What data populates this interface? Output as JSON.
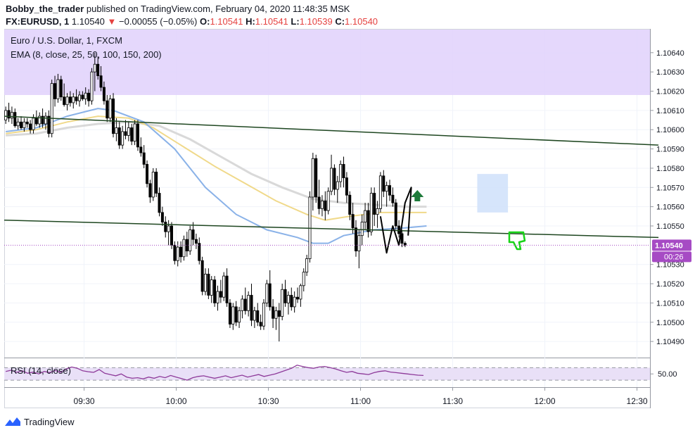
{
  "header": {
    "author": "Bobby_the_trader",
    "published_text": "published on TradingView.com, February 04, 2020 11:48:35 MSK"
  },
  "ticker": {
    "symbol": "FX:EURUSD, 1",
    "last": "1.10540",
    "arrow": "▼",
    "change": "−0.00055 (−0.05%)",
    "o_label": "O:",
    "o_value": "1.10541",
    "h_label": "H:",
    "h_value": "1.10541",
    "l_label": "L:",
    "l_value": "1.10539",
    "c_label": "C:",
    "c_value": "1.10540"
  },
  "legend": {
    "title": "Euro / U.S. Dollar, 1, FXCM",
    "ema": "EMA (8, close, 25, 50, 100, 150, 200)",
    "rsi": "RSI (14, close)"
  },
  "footer": {
    "brand": "TradingView"
  },
  "colors": {
    "up": "#ffffff",
    "down": "#000000",
    "resistance_zone": "#e1d1fb",
    "trendline": "#1e4620",
    "ema_fast": "#8ab2e8",
    "ema_mid": "#f0d98a",
    "ema_slow": "#d9d9d9",
    "rsi_line": "#8e3a9a",
    "rsi_band": "#e9e0f7",
    "price_tag": "#a64bc4",
    "target_box": "#cfe0fa",
    "arrow_up": "#1e7a3a",
    "thumb_down": "#18d318"
  },
  "chart_data": {
    "type": "candlestick",
    "x_ticks": [
      "09:30",
      "10:00",
      "10:30",
      "11:00",
      "11:30",
      "12:00",
      "12:30"
    ],
    "y_ticks": [
      "1.10640",
      "1.10630",
      "1.10620",
      "1.10610",
      "1.10600",
      "1.10590",
      "1.10580",
      "1.10570",
      "1.10560",
      "1.10550",
      "1.10530",
      "1.10520",
      "1.10510",
      "1.10500",
      "1.10490"
    ],
    "ylim": [
      1.10482,
      1.10652
    ],
    "last_price_label": "1.10540",
    "last_price": 1.1054,
    "countdown": "00:26",
    "rsi_tick": "50.00",
    "rsi_band": [
      30,
      70
    ],
    "resistance_zone": [
      1.10618,
      1.10652
    ],
    "target_zone": {
      "from": "11:38",
      "to": "11:48",
      "price_low": 1.10557,
      "price_high": 1.10577
    },
    "trendlines": [
      {
        "from": [
          "09:04",
          1.10607
        ],
        "to": [
          "12:37",
          1.10592
        ]
      },
      {
        "from": [
          "09:04",
          1.10553
        ],
        "to": [
          "12:37",
          1.10544
        ]
      }
    ],
    "candles": [
      [
        1.10605,
        1.10612,
        1.10603,
        1.1061
      ],
      [
        1.1061,
        1.10614,
        1.10604,
        1.10606
      ],
      [
        1.10606,
        1.10612,
        1.10603,
        1.10609
      ],
      [
        1.10609,
        1.10611,
        1.10601,
        1.10602
      ],
      [
        1.10602,
        1.10606,
        1.106,
        1.10604
      ],
      [
        1.10604,
        1.10607,
        1.106,
        1.10601
      ],
      [
        1.10601,
        1.10606,
        1.10599,
        1.10604
      ],
      [
        1.10604,
        1.10606,
        1.10601,
        1.10603
      ],
      [
        1.10603,
        1.10605,
        1.10598,
        1.106
      ],
      [
        1.106,
        1.10608,
        1.10598,
        1.10606
      ],
      [
        1.10606,
        1.1061,
        1.10602,
        1.10603
      ],
      [
        1.10603,
        1.10609,
        1.10601,
        1.10607
      ],
      [
        1.10607,
        1.10611,
        1.10601,
        1.10603
      ],
      [
        1.10603,
        1.10609,
        1.106,
        1.10607
      ],
      [
        1.10607,
        1.1061,
        1.10596,
        1.10598
      ],
      [
        1.10598,
        1.10626,
        1.10596,
        1.10624
      ],
      [
        1.10624,
        1.10628,
        1.10612,
        1.10616
      ],
      [
        1.10616,
        1.10629,
        1.10614,
        1.10626
      ],
      [
        1.10626,
        1.10628,
        1.10615,
        1.10617
      ],
      [
        1.10617,
        1.10624,
        1.10612,
        1.10613
      ],
      [
        1.10613,
        1.10619,
        1.1061,
        1.10617
      ],
      [
        1.10617,
        1.1062,
        1.10612,
        1.10614
      ],
      [
        1.10614,
        1.10619,
        1.10611,
        1.10617
      ],
      [
        1.10617,
        1.10621,
        1.10613,
        1.10615
      ],
      [
        1.10615,
        1.1062,
        1.10612,
        1.10618
      ],
      [
        1.10618,
        1.1062,
        1.10615,
        1.10616
      ],
      [
        1.10616,
        1.10622,
        1.10613,
        1.10619
      ],
      [
        1.10619,
        1.10621,
        1.10612,
        1.10615
      ],
      [
        1.10615,
        1.10632,
        1.10613,
        1.1063
      ],
      [
        1.1063,
        1.1064,
        1.1062,
        1.10634
      ],
      [
        1.10634,
        1.10638,
        1.10626,
        1.10628
      ],
      [
        1.10628,
        1.10633,
        1.1062,
        1.10622
      ],
      [
        1.10622,
        1.10625,
        1.10613,
        1.10615
      ],
      [
        1.10615,
        1.10618,
        1.10604,
        1.10606
      ],
      [
        1.10606,
        1.10618,
        1.10604,
        1.10616
      ],
      [
        1.10616,
        1.10619,
        1.10596,
        1.10598
      ],
      [
        1.10598,
        1.10606,
        1.10594,
        1.10601
      ],
      [
        1.10601,
        1.10604,
        1.1059,
        1.10592
      ],
      [
        1.10592,
        1.10602,
        1.1059,
        1.10599
      ],
      [
        1.10599,
        1.10605,
        1.10595,
        1.10597
      ],
      [
        1.10597,
        1.10604,
        1.10594,
        1.10601
      ],
      [
        1.10601,
        1.10603,
        1.10592,
        1.10594
      ],
      [
        1.10594,
        1.10605,
        1.10592,
        1.10603
      ],
      [
        1.10603,
        1.10605,
        1.10589,
        1.10591
      ],
      [
        1.10591,
        1.10596,
        1.10586,
        1.10588
      ],
      [
        1.10588,
        1.10592,
        1.1058,
        1.10582
      ],
      [
        1.10582,
        1.10584,
        1.1057,
        1.10572
      ],
      [
        1.10572,
        1.10574,
        1.10562,
        1.10565
      ],
      [
        1.10565,
        1.1058,
        1.10563,
        1.10578
      ],
      [
        1.10578,
        1.1058,
        1.10565,
        1.10567
      ],
      [
        1.10567,
        1.1057,
        1.10555,
        1.10557
      ],
      [
        1.10557,
        1.1056,
        1.1055,
        1.10552
      ],
      [
        1.10552,
        1.10555,
        1.10544,
        1.10547
      ],
      [
        1.10547,
        1.10553,
        1.1054,
        1.1055
      ],
      [
        1.1055,
        1.10552,
        1.10538,
        1.1054
      ],
      [
        1.1054,
        1.10542,
        1.1053,
        1.10532
      ],
      [
        1.10532,
        1.10542,
        1.10529,
        1.10539
      ],
      [
        1.10539,
        1.10542,
        1.10531,
        1.10534
      ],
      [
        1.10534,
        1.10545,
        1.10532,
        1.10543
      ],
      [
        1.10543,
        1.10547,
        1.10534,
        1.10537
      ],
      [
        1.10537,
        1.1055,
        1.10535,
        1.10548
      ],
      [
        1.10548,
        1.10552,
        1.1054,
        1.10543
      ],
      [
        1.10543,
        1.10546,
        1.10538,
        1.10541
      ],
      [
        1.10541,
        1.10544,
        1.1053,
        1.10532
      ],
      [
        1.10532,
        1.10534,
        1.10514,
        1.10516
      ],
      [
        1.10516,
        1.10528,
        1.10514,
        1.10525
      ],
      [
        1.10525,
        1.10528,
        1.10512,
        1.10514
      ],
      [
        1.10514,
        1.10524,
        1.1051,
        1.10522
      ],
      [
        1.10522,
        1.10524,
        1.10508,
        1.1051
      ],
      [
        1.1051,
        1.10519,
        1.10506,
        1.10516
      ],
      [
        1.10516,
        1.10522,
        1.1051,
        1.10513
      ],
      [
        1.10513,
        1.10526,
        1.10511,
        1.10524
      ],
      [
        1.10524,
        1.10528,
        1.10508,
        1.1051
      ],
      [
        1.1051,
        1.10512,
        1.10497,
        1.10499
      ],
      [
        1.10499,
        1.1051,
        1.10496,
        1.10508
      ],
      [
        1.10508,
        1.10511,
        1.10498,
        1.105
      ],
      [
        1.105,
        1.10508,
        1.10497,
        1.10506
      ],
      [
        1.10506,
        1.10514,
        1.10502,
        1.10512
      ],
      [
        1.10512,
        1.10518,
        1.10504,
        1.10506
      ],
      [
        1.10506,
        1.10516,
        1.10503,
        1.10514
      ],
      [
        1.10514,
        1.1052,
        1.10498,
        1.10501
      ],
      [
        1.10501,
        1.10508,
        1.10497,
        1.10506
      ],
      [
        1.10506,
        1.1051,
        1.10498,
        1.105
      ],
      [
        1.105,
        1.10504,
        1.10496,
        1.10498
      ],
      [
        1.10498,
        1.10512,
        1.10496,
        1.1051
      ],
      [
        1.1051,
        1.10522,
        1.10508,
        1.1052
      ],
      [
        1.1052,
        1.10527,
        1.10506,
        1.10508
      ],
      [
        1.10508,
        1.10512,
        1.10497,
        1.10502
      ],
      [
        1.10502,
        1.10508,
        1.10496,
        1.10506
      ],
      [
        1.10506,
        1.1051,
        1.1049,
        1.10503
      ],
      [
        1.10503,
        1.1052,
        1.10501,
        1.10517
      ],
      [
        1.10517,
        1.10522,
        1.10508,
        1.1051
      ],
      [
        1.1051,
        1.10516,
        1.10504,
        1.10514
      ],
      [
        1.10514,
        1.10518,
        1.10506,
        1.10508
      ],
      [
        1.10508,
        1.10516,
        1.10505,
        1.10513
      ],
      [
        1.10513,
        1.10518,
        1.1051,
        1.10512
      ],
      [
        1.10512,
        1.1052,
        1.10508,
        1.10519
      ],
      [
        1.10519,
        1.10528,
        1.10516,
        1.10526
      ],
      [
        1.10526,
        1.10535,
        1.10524,
        1.10533
      ],
      [
        1.10533,
        1.10568,
        1.10531,
        1.10565
      ],
      [
        1.10565,
        1.10588,
        1.10558,
        1.10585
      ],
      [
        1.10585,
        1.10587,
        1.10562,
        1.10565
      ],
      [
        1.10565,
        1.10574,
        1.10556,
        1.10559
      ],
      [
        1.10559,
        1.10566,
        1.10555,
        1.10563
      ],
      [
        1.10563,
        1.10568,
        1.10553,
        1.10558
      ],
      [
        1.10558,
        1.1057,
        1.10556,
        1.10568
      ],
      [
        1.10568,
        1.10587,
        1.10566,
        1.1058
      ],
      [
        1.1058,
        1.10582,
        1.10566,
        1.10569
      ],
      [
        1.10569,
        1.10576,
        1.10562,
        1.10573
      ],
      [
        1.10573,
        1.10584,
        1.1057,
        1.10582
      ],
      [
        1.10582,
        1.10586,
        1.1057,
        1.10575
      ],
      [
        1.10575,
        1.10578,
        1.10562,
        1.10566
      ],
      [
        1.10566,
        1.10568,
        1.10553,
        1.10556
      ],
      [
        1.10556,
        1.10562,
        1.10546,
        1.10549
      ],
      [
        1.10549,
        1.10553,
        1.10534,
        1.10537
      ],
      [
        1.10537,
        1.10548,
        1.10528,
        1.10545
      ],
      [
        1.10545,
        1.10556,
        1.1054,
        1.10552
      ],
      [
        1.10552,
        1.10562,
        1.10548,
        1.10558
      ],
      [
        1.10558,
        1.10562,
        1.10544,
        1.10547
      ],
      [
        1.10547,
        1.1057,
        1.10545,
        1.10567
      ],
      [
        1.10567,
        1.1057,
        1.1055,
        1.10556
      ],
      [
        1.10556,
        1.10563,
        1.10549,
        1.10559
      ],
      [
        1.10559,
        1.10578,
        1.10557,
        1.10576
      ],
      [
        1.10576,
        1.10579,
        1.10565,
        1.10568
      ],
      [
        1.10568,
        1.10573,
        1.1056,
        1.10571
      ],
      [
        1.10571,
        1.10574,
        1.10563,
        1.10566
      ],
      [
        1.10566,
        1.1057,
        1.1056,
        1.10562
      ],
      [
        1.10562,
        1.10564,
        1.10548,
        1.1055
      ],
      [
        1.1055,
        1.10553,
        1.10544,
        1.10546
      ],
      [
        1.10546,
        1.10548,
        1.10539,
        1.10541
      ],
      [
        1.10541,
        1.10542,
        1.10539,
        1.1054
      ]
    ],
    "ema_fast": [
      [
        0,
        1.10599
      ],
      [
        10,
        1.10601
      ],
      [
        20,
        1.10607
      ],
      [
        30,
        1.10611
      ],
      [
        35,
        1.1061
      ],
      [
        45,
        1.10604
      ],
      [
        55,
        1.1059
      ],
      [
        65,
        1.1057
      ],
      [
        75,
        1.10556
      ],
      [
        85,
        1.10548
      ],
      [
        95,
        1.10544
      ],
      [
        100,
        1.10541
      ],
      [
        105,
        1.10541
      ],
      [
        110,
        1.10545
      ],
      [
        120,
        1.10548
      ],
      [
        130,
        1.10549
      ],
      [
        137,
        1.1055
      ]
    ],
    "ema_mid": [
      [
        0,
        1.10598
      ],
      [
        10,
        1.106
      ],
      [
        20,
        1.10604
      ],
      [
        30,
        1.10607
      ],
      [
        40,
        1.10606
      ],
      [
        48,
        1.10601
      ],
      [
        58,
        1.10591
      ],
      [
        68,
        1.10581
      ],
      [
        78,
        1.10572
      ],
      [
        88,
        1.10563
      ],
      [
        98,
        1.10556
      ],
      [
        104,
        1.10553
      ],
      [
        112,
        1.10555
      ],
      [
        122,
        1.10557
      ],
      [
        137,
        1.10557
      ]
    ],
    "ema_slow": [
      [
        0,
        1.10597
      ],
      [
        10,
        1.10598
      ],
      [
        20,
        1.10601
      ],
      [
        30,
        1.10603
      ],
      [
        40,
        1.10604
      ],
      [
        50,
        1.10602
      ],
      [
        60,
        1.10595
      ],
      [
        70,
        1.10586
      ],
      [
        80,
        1.10577
      ],
      [
        90,
        1.1057
      ],
      [
        100,
        1.10564
      ],
      [
        110,
        1.10562
      ],
      [
        120,
        1.10561
      ],
      [
        130,
        1.1056
      ],
      [
        137,
        1.1056
      ]
    ],
    "rsi": [
      58,
      62,
      55,
      60,
      52,
      56,
      50,
      58,
      54,
      61,
      55,
      66,
      72,
      68,
      60,
      57,
      55,
      64,
      52,
      48,
      44,
      50,
      40,
      36,
      38,
      34,
      40,
      36,
      42,
      38,
      45,
      40,
      35,
      30,
      38,
      42,
      44,
      40,
      36,
      40,
      44,
      38,
      42,
      46,
      40,
      44,
      48,
      42,
      46,
      50,
      56,
      62,
      68,
      78,
      74,
      70,
      68,
      72,
      74,
      70,
      66,
      60,
      55,
      58,
      52,
      50,
      48,
      54,
      58,
      60,
      56,
      54,
      52,
      50,
      48,
      46,
      45
    ]
  },
  "annotations": {
    "arrow_up_icon": "arrow-up",
    "thumb_icon": "thumbs-down"
  }
}
